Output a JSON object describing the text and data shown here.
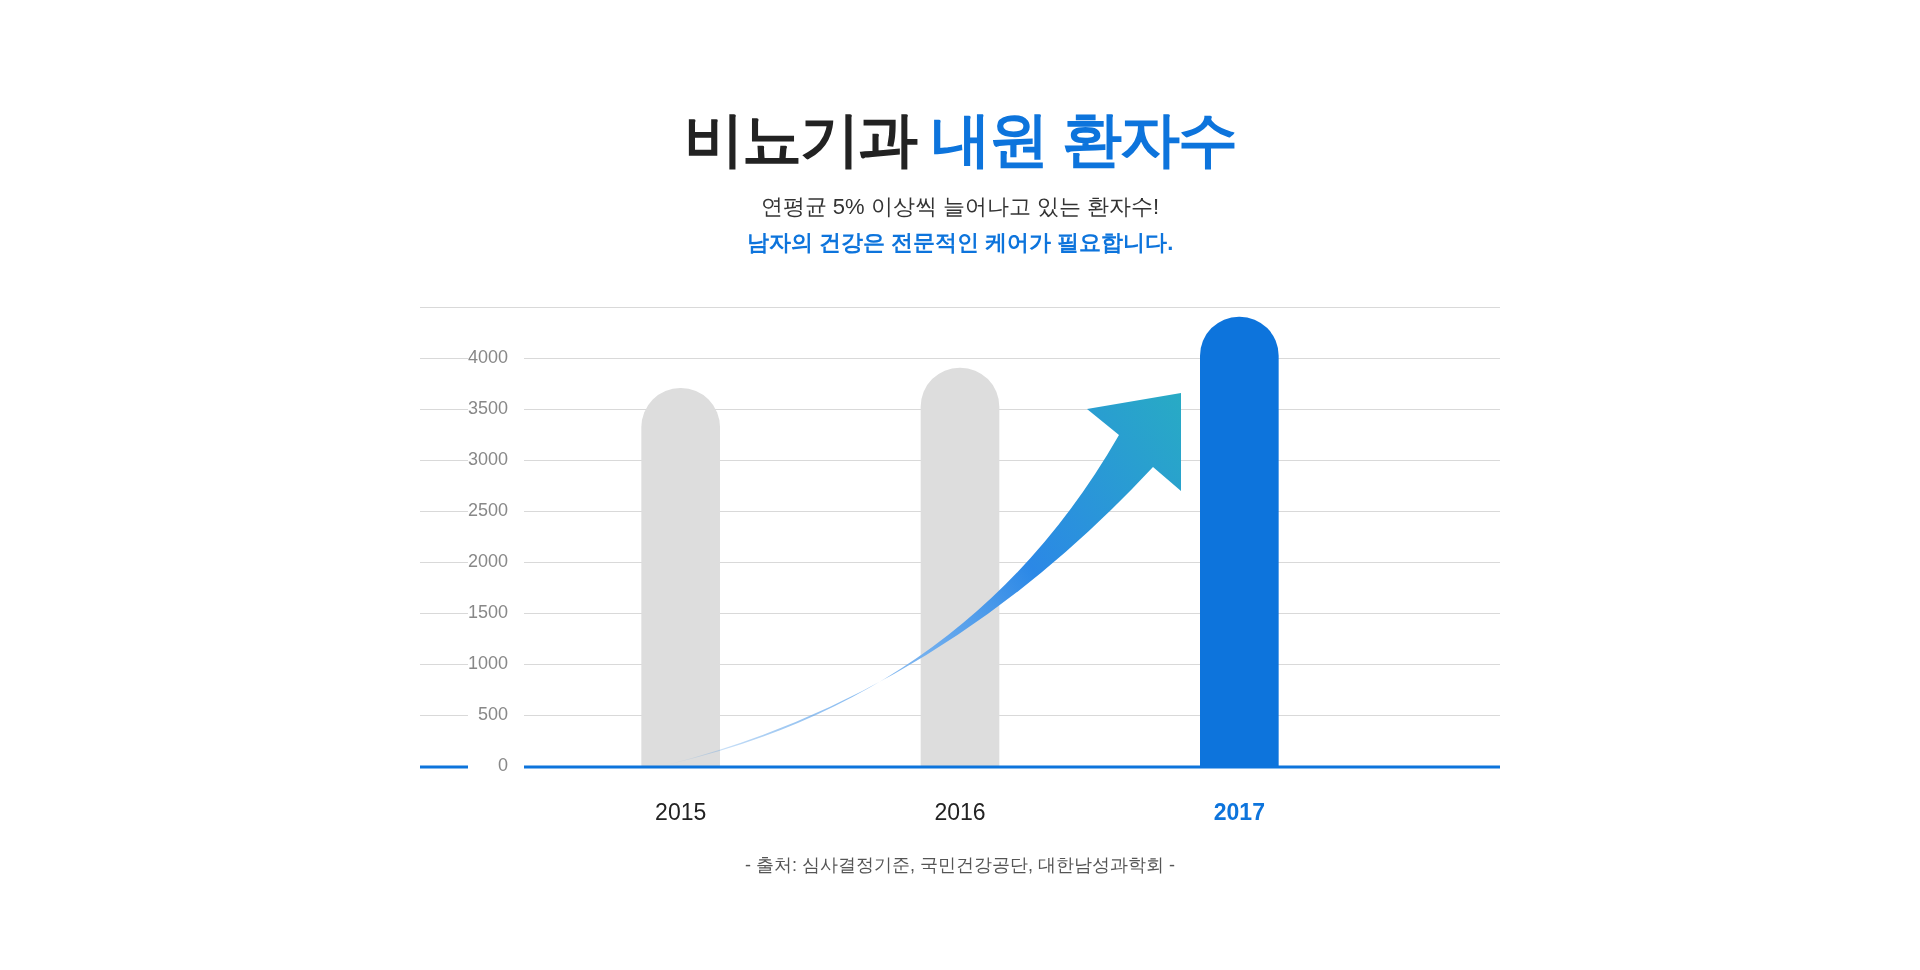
{
  "chart_data": {
    "type": "bar",
    "title": "비뇨기과 내원 환자수",
    "subtitle": [
      "연평균 5% 이상씩 늘어나고 있는 환자수!",
      "남자의 건강은 전문적인 케어가 필요합니다."
    ],
    "categories": [
      "2015",
      "2016",
      "2017"
    ],
    "values": [
      3700,
      3900,
      4400
    ],
    "colors": [
      "#dddddd",
      "#dddddd",
      "#0d74dc"
    ],
    "ylim": [
      0,
      4500
    ],
    "yticks": [
      0,
      500,
      1000,
      1500,
      2000,
      2500,
      3000,
      3500,
      4000,
      {
        "value": 4500,
        "label": null
      }
    ],
    "grid": "y",
    "legend": false,
    "annotations": [
      "- 출처: 심사결정기준, 국민건강공단, 대한남성과학회 -"
    ]
  }
}
